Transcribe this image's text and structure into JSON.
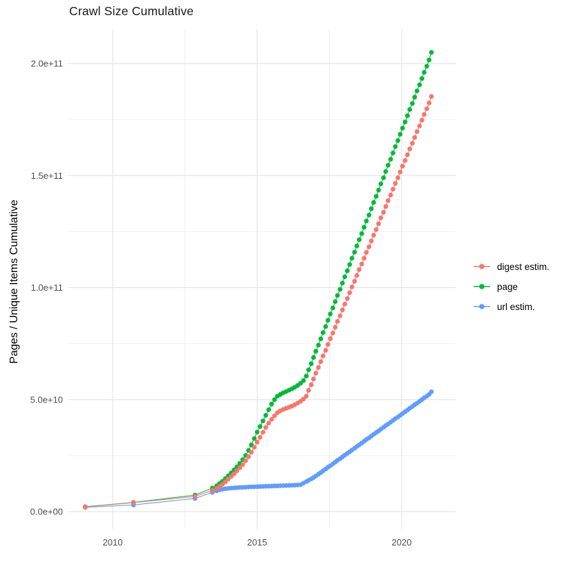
{
  "title": "Crawl Size Cumulative",
  "axes": {
    "y_label": "Pages / Unique Items Cumulative",
    "x_ticks": [
      {
        "label": "2010",
        "year": 2010
      },
      {
        "label": "2015",
        "year": 2015
      },
      {
        "label": "2020",
        "year": 2020
      }
    ],
    "y_ticks": [
      {
        "label": "0.0e+00",
        "value": 0
      },
      {
        "label": "5.0e+10",
        "value": 50
      },
      {
        "label": "1.0e+11",
        "value": 100
      },
      {
        "label": "1.5e+11",
        "value": 150
      },
      {
        "label": "2.0e+11",
        "value": 200
      }
    ],
    "x_minor": [
      2012.5,
      2017.5
    ],
    "y_minor": [
      25,
      75,
      125,
      175
    ]
  },
  "colors": {
    "digest": "#F8766D",
    "page": "#00BA38",
    "url": "#619CFF",
    "grid_major": "#e4e4e4",
    "grid_minor": "#f0f0f0"
  },
  "legend": {
    "items": [
      {
        "label": "digest estim.",
        "color": "#F8766D"
      },
      {
        "label": "page",
        "color": "#00BA38"
      },
      {
        "label": "url estim.",
        "color": "#619CFF"
      }
    ]
  },
  "chart_data": {
    "type": "scatter",
    "title": "Crawl Size Cumulative",
    "xlabel": "",
    "ylabel": "Pages / Unique Items Cumulative",
    "x_range": [
      2008.5,
      2021.8
    ],
    "y_range_billions": [
      0,
      212
    ],
    "value_unit": "1e9 pages (values below are billions)",
    "grid": true,
    "legend_position": "right",
    "series": [
      {
        "name": "digest estim.",
        "color": "#F8766D",
        "points": [
          [
            2009.05,
            2.1
          ],
          [
            2010.72,
            4.0
          ],
          [
            2012.85,
            6.8
          ],
          [
            2013.45,
            9.5
          ],
          [
            2013.6,
            10.3
          ],
          [
            2013.7,
            11.2
          ],
          [
            2013.8,
            12.2
          ],
          [
            2013.9,
            13.3
          ],
          [
            2014.0,
            14.5
          ],
          [
            2014.1,
            15.7
          ],
          [
            2014.2,
            16.9
          ],
          [
            2014.3,
            18.2
          ],
          [
            2014.4,
            19.6
          ],
          [
            2014.5,
            21.0
          ],
          [
            2014.6,
            22.7
          ],
          [
            2014.7,
            24.5
          ],
          [
            2014.8,
            26.5
          ],
          [
            2014.9,
            28.7
          ],
          [
            2015.0,
            31.0
          ],
          [
            2015.1,
            33.2
          ],
          [
            2015.2,
            35.4
          ],
          [
            2015.3,
            37.6
          ],
          [
            2015.4,
            39.5
          ],
          [
            2015.5,
            41.2
          ],
          [
            2015.6,
            42.8
          ],
          [
            2015.7,
            44.2
          ],
          [
            2015.8,
            45.0
          ],
          [
            2015.9,
            45.6
          ],
          [
            2016.0,
            46.1
          ],
          [
            2016.1,
            46.6
          ],
          [
            2016.2,
            47.1
          ],
          [
            2016.3,
            47.7
          ],
          [
            2016.4,
            48.4
          ],
          [
            2016.5,
            49.2
          ],
          [
            2016.6,
            50.2
          ],
          [
            2016.7,
            51.5
          ],
          [
            2016.78,
            54.1
          ],
          [
            2016.87,
            56.6
          ],
          [
            2016.95,
            59.2
          ],
          [
            2017.03,
            61.8
          ],
          [
            2017.12,
            64.3
          ],
          [
            2017.2,
            66.9
          ],
          [
            2017.28,
            69.5
          ],
          [
            2017.37,
            72.0
          ],
          [
            2017.45,
            74.6
          ],
          [
            2017.53,
            77.2
          ],
          [
            2017.62,
            79.7
          ],
          [
            2017.7,
            82.3
          ],
          [
            2017.78,
            84.9
          ],
          [
            2017.87,
            87.4
          ],
          [
            2017.95,
            90.0
          ],
          [
            2018.03,
            92.6
          ],
          [
            2018.12,
            95.1
          ],
          [
            2018.2,
            97.7
          ],
          [
            2018.28,
            100.3
          ],
          [
            2018.37,
            102.8
          ],
          [
            2018.45,
            105.4
          ],
          [
            2018.53,
            108.0
          ],
          [
            2018.62,
            110.5
          ],
          [
            2018.7,
            113.1
          ],
          [
            2018.78,
            115.7
          ],
          [
            2018.87,
            118.2
          ],
          [
            2018.95,
            120.8
          ],
          [
            2019.03,
            123.4
          ],
          [
            2019.12,
            125.9
          ],
          [
            2019.2,
            128.5
          ],
          [
            2019.28,
            131.1
          ],
          [
            2019.37,
            133.6
          ],
          [
            2019.45,
            136.2
          ],
          [
            2019.53,
            138.8
          ],
          [
            2019.62,
            141.3
          ],
          [
            2019.7,
            143.9
          ],
          [
            2019.78,
            146.5
          ],
          [
            2019.87,
            149.0
          ],
          [
            2019.95,
            151.6
          ],
          [
            2020.03,
            154.2
          ],
          [
            2020.12,
            156.7
          ],
          [
            2020.2,
            159.3
          ],
          [
            2020.28,
            161.9
          ],
          [
            2020.37,
            164.4
          ],
          [
            2020.45,
            167.0
          ],
          [
            2020.53,
            169.6
          ],
          [
            2020.62,
            172.1
          ],
          [
            2020.7,
            174.7
          ],
          [
            2020.78,
            177.3
          ],
          [
            2020.87,
            179.8
          ],
          [
            2020.95,
            182.4
          ],
          [
            2021.03,
            185.3
          ]
        ]
      },
      {
        "name": "page",
        "color": "#00BA38",
        "points": [
          [
            2009.05,
            2.2
          ],
          [
            2010.72,
            4.1
          ],
          [
            2012.85,
            7.4
          ],
          [
            2013.45,
            10.5
          ],
          [
            2013.6,
            11.5
          ],
          [
            2013.7,
            12.5
          ],
          [
            2013.8,
            13.5
          ],
          [
            2013.9,
            14.7
          ],
          [
            2014.0,
            16.0
          ],
          [
            2014.1,
            17.3
          ],
          [
            2014.2,
            18.6
          ],
          [
            2014.3,
            20.0
          ],
          [
            2014.4,
            21.5
          ],
          [
            2014.5,
            23.2
          ],
          [
            2014.6,
            25.1
          ],
          [
            2014.7,
            27.3
          ],
          [
            2014.8,
            29.8
          ],
          [
            2014.9,
            32.6
          ],
          [
            2015.0,
            35.5
          ],
          [
            2015.1,
            38.0
          ],
          [
            2015.2,
            40.5
          ],
          [
            2015.3,
            43.0
          ],
          [
            2015.4,
            45.5
          ],
          [
            2015.5,
            48.0
          ],
          [
            2015.6,
            50.0
          ],
          [
            2015.7,
            51.5
          ],
          [
            2015.8,
            52.3
          ],
          [
            2015.9,
            53.0
          ],
          [
            2016.0,
            53.6
          ],
          [
            2016.1,
            54.2
          ],
          [
            2016.2,
            54.8
          ],
          [
            2016.3,
            55.5
          ],
          [
            2016.4,
            56.3
          ],
          [
            2016.5,
            57.3
          ],
          [
            2016.6,
            58.5
          ],
          [
            2016.7,
            60.5
          ],
          [
            2016.78,
            63.3
          ],
          [
            2016.87,
            66.0
          ],
          [
            2016.95,
            68.8
          ],
          [
            2017.03,
            71.6
          ],
          [
            2017.12,
            74.3
          ],
          [
            2017.2,
            77.1
          ],
          [
            2017.28,
            79.9
          ],
          [
            2017.37,
            82.6
          ],
          [
            2017.45,
            85.4
          ],
          [
            2017.53,
            88.2
          ],
          [
            2017.62,
            90.9
          ],
          [
            2017.7,
            93.7
          ],
          [
            2017.78,
            96.5
          ],
          [
            2017.87,
            99.2
          ],
          [
            2017.95,
            102.0
          ],
          [
            2018.03,
            104.8
          ],
          [
            2018.12,
            107.5
          ],
          [
            2018.2,
            110.3
          ],
          [
            2018.28,
            113.1
          ],
          [
            2018.37,
            115.8
          ],
          [
            2018.45,
            118.6
          ],
          [
            2018.53,
            121.4
          ],
          [
            2018.62,
            124.1
          ],
          [
            2018.7,
            126.9
          ],
          [
            2018.78,
            129.7
          ],
          [
            2018.87,
            132.4
          ],
          [
            2018.95,
            135.2
          ],
          [
            2019.03,
            138.0
          ],
          [
            2019.12,
            140.7
          ],
          [
            2019.2,
            143.5
          ],
          [
            2019.28,
            146.3
          ],
          [
            2019.37,
            149.0
          ],
          [
            2019.45,
            151.8
          ],
          [
            2019.53,
            154.6
          ],
          [
            2019.62,
            157.3
          ],
          [
            2019.7,
            160.1
          ],
          [
            2019.78,
            162.9
          ],
          [
            2019.87,
            165.6
          ],
          [
            2019.95,
            168.4
          ],
          [
            2020.03,
            171.2
          ],
          [
            2020.12,
            173.9
          ],
          [
            2020.2,
            176.7
          ],
          [
            2020.28,
            179.5
          ],
          [
            2020.37,
            182.2
          ],
          [
            2020.45,
            185.0
          ],
          [
            2020.53,
            187.8
          ],
          [
            2020.62,
            190.5
          ],
          [
            2020.7,
            193.3
          ],
          [
            2020.78,
            196.1
          ],
          [
            2020.87,
            198.8
          ],
          [
            2020.95,
            201.6
          ],
          [
            2021.03,
            205.0
          ]
        ]
      },
      {
        "name": "url estim.",
        "color": "#619CFF",
        "points": [
          [
            2009.05,
            1.9
          ],
          [
            2010.72,
            3.0
          ],
          [
            2012.85,
            5.9
          ],
          [
            2013.45,
            8.6
          ],
          [
            2013.6,
            9.3
          ],
          [
            2013.7,
            9.7
          ],
          [
            2013.8,
            10.0
          ],
          [
            2013.9,
            10.2
          ],
          [
            2014.0,
            10.35
          ],
          [
            2014.1,
            10.5
          ],
          [
            2014.2,
            10.6
          ],
          [
            2014.3,
            10.7
          ],
          [
            2014.4,
            10.8
          ],
          [
            2014.5,
            10.85
          ],
          [
            2014.6,
            10.9
          ],
          [
            2014.7,
            11.0
          ],
          [
            2014.8,
            11.05
          ],
          [
            2014.9,
            11.1
          ],
          [
            2015.0,
            11.15
          ],
          [
            2015.1,
            11.2
          ],
          [
            2015.2,
            11.25
          ],
          [
            2015.3,
            11.3
          ],
          [
            2015.4,
            11.35
          ],
          [
            2015.5,
            11.4
          ],
          [
            2015.6,
            11.45
          ],
          [
            2015.7,
            11.5
          ],
          [
            2015.8,
            11.55
          ],
          [
            2015.9,
            11.6
          ],
          [
            2016.0,
            11.65
          ],
          [
            2016.1,
            11.7
          ],
          [
            2016.2,
            11.75
          ],
          [
            2016.3,
            11.8
          ],
          [
            2016.4,
            11.9
          ],
          [
            2016.5,
            12.0
          ],
          [
            2016.6,
            12.7
          ],
          [
            2016.7,
            13.4
          ],
          [
            2016.78,
            14.0
          ],
          [
            2016.87,
            14.6
          ],
          [
            2016.95,
            15.2
          ],
          [
            2017.03,
            15.9
          ],
          [
            2017.12,
            16.7
          ],
          [
            2017.2,
            17.4
          ],
          [
            2017.28,
            18.2
          ],
          [
            2017.37,
            19.0
          ],
          [
            2017.45,
            19.8
          ],
          [
            2017.53,
            20.5
          ],
          [
            2017.62,
            21.3
          ],
          [
            2017.7,
            22.1
          ],
          [
            2017.78,
            22.9
          ],
          [
            2017.87,
            23.6
          ],
          [
            2017.95,
            24.4
          ],
          [
            2018.03,
            25.2
          ],
          [
            2018.12,
            26.0
          ],
          [
            2018.2,
            26.7
          ],
          [
            2018.28,
            27.5
          ],
          [
            2018.37,
            28.3
          ],
          [
            2018.45,
            29.1
          ],
          [
            2018.53,
            29.8
          ],
          [
            2018.62,
            30.6
          ],
          [
            2018.7,
            31.4
          ],
          [
            2018.78,
            32.2
          ],
          [
            2018.87,
            32.9
          ],
          [
            2018.95,
            33.7
          ],
          [
            2019.03,
            34.5
          ],
          [
            2019.12,
            35.3
          ],
          [
            2019.2,
            36.0
          ],
          [
            2019.28,
            36.8
          ],
          [
            2019.37,
            37.6
          ],
          [
            2019.45,
            38.4
          ],
          [
            2019.53,
            39.1
          ],
          [
            2019.62,
            39.9
          ],
          [
            2019.7,
            40.7
          ],
          [
            2019.78,
            41.5
          ],
          [
            2019.87,
            42.2
          ],
          [
            2019.95,
            43.0
          ],
          [
            2020.03,
            43.8
          ],
          [
            2020.12,
            44.6
          ],
          [
            2020.2,
            45.3
          ],
          [
            2020.28,
            46.1
          ],
          [
            2020.37,
            46.9
          ],
          [
            2020.45,
            47.7
          ],
          [
            2020.53,
            48.4
          ],
          [
            2020.62,
            49.2
          ],
          [
            2020.7,
            50.0
          ],
          [
            2020.78,
            50.8
          ],
          [
            2020.87,
            51.5
          ],
          [
            2020.95,
            52.3
          ],
          [
            2021.03,
            53.5
          ]
        ]
      }
    ]
  }
}
